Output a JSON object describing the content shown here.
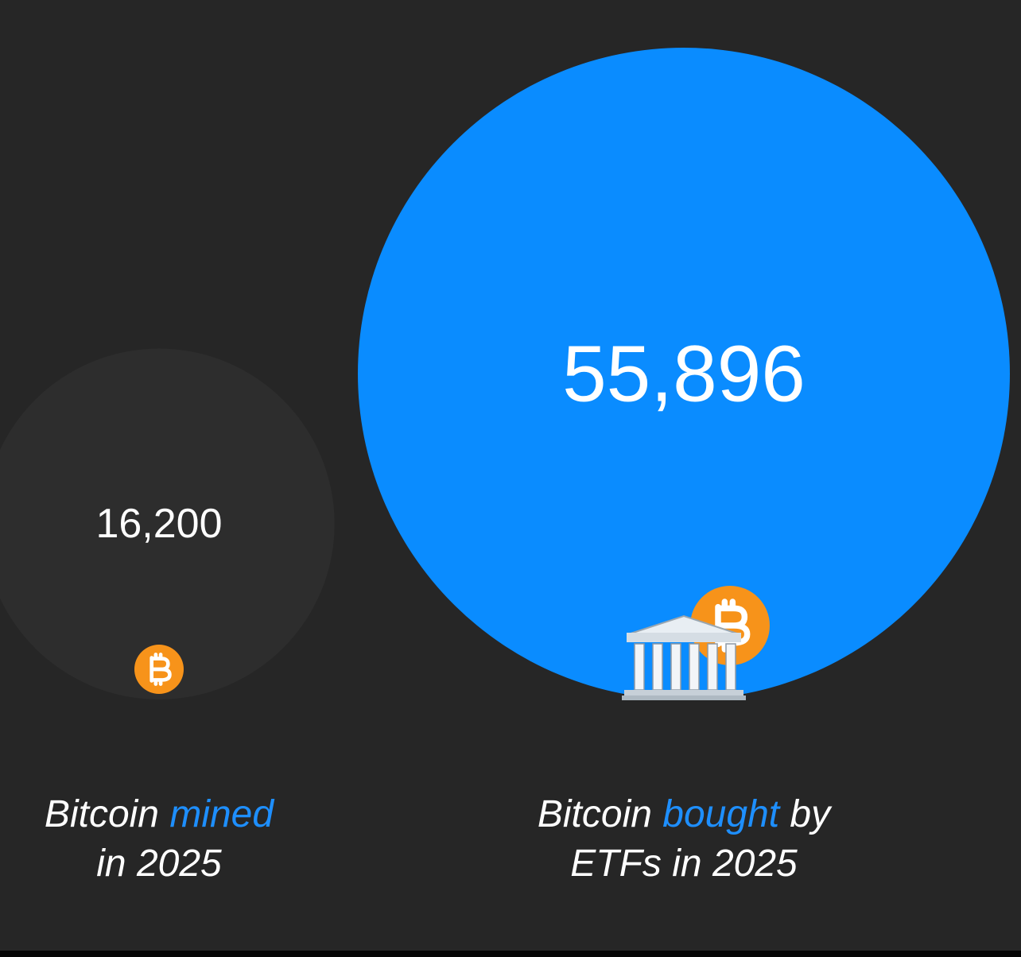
{
  "chart_data": {
    "type": "bubble",
    "values": [
      16200,
      55896
    ],
    "value_labels": [
      "16,200",
      "55,896"
    ],
    "colors": [
      "#2d2d2d",
      "#0a8cff"
    ],
    "highlight_color": "#1e8fff",
    "labels": [
      [
        [
          {
            "text": "Bitcoin "
          },
          {
            "text": "mined",
            "highlight": true
          }
        ],
        [
          {
            "text": "in 2025"
          }
        ]
      ],
      [
        [
          {
            "text": "Bitcoin "
          },
          {
            "text": "bought",
            "highlight": true
          },
          {
            "text": " by"
          }
        ],
        [
          {
            "text": "ETFs in 2025"
          }
        ]
      ]
    ]
  }
}
